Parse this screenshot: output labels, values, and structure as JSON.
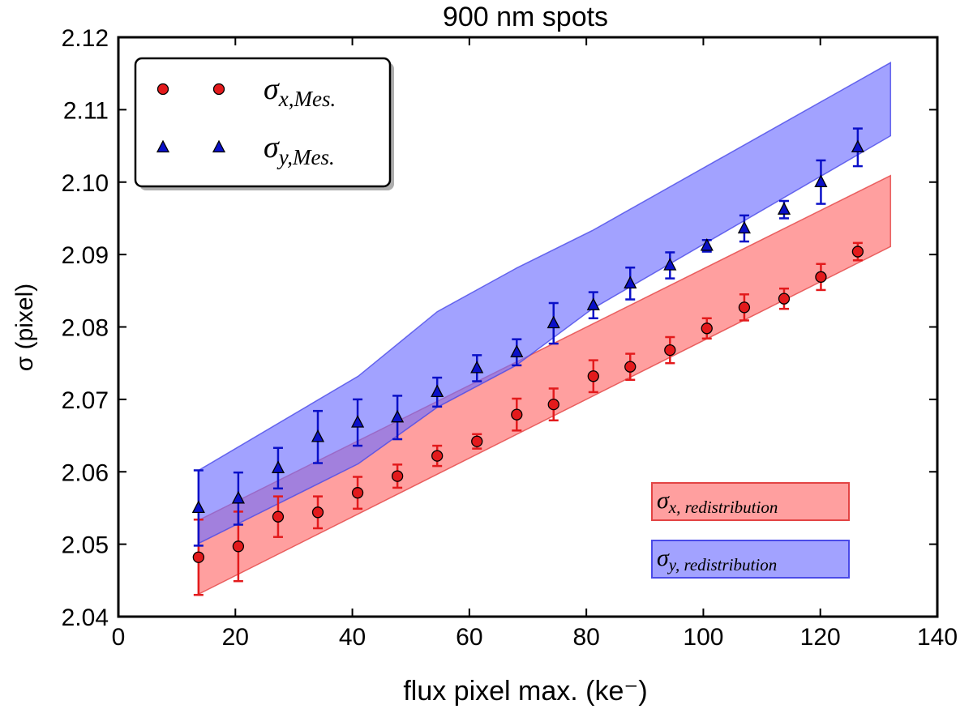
{
  "chart_data": {
    "type": "scatter",
    "title": "900 nm spots",
    "xlabel": "flux pixel max. (ke⁻)",
    "ylabel": "σ (pixel)",
    "xlim": [
      0,
      140
    ],
    "ylim": [
      2.04,
      2.12
    ],
    "x_ticks": [
      0,
      20,
      40,
      60,
      80,
      100,
      120,
      140
    ],
    "y_ticks": [
      2.04,
      2.05,
      2.06,
      2.07,
      2.08,
      2.09,
      2.1,
      2.11,
      2.12
    ],
    "x_tick_labels": [
      "0",
      "20",
      "40",
      "60",
      "80",
      "100",
      "120",
      "140"
    ],
    "y_tick_labels": [
      "2.04",
      "2.05",
      "2.06",
      "2.07",
      "2.08",
      "2.09",
      "2.10",
      "2.11",
      "2.12"
    ],
    "series": [
      {
        "name": "σx,Mes.",
        "label_main": "σ",
        "label_sub": "x,Mes.",
        "marker": "circle",
        "color": "#e31a1c",
        "errcolor": "#e31a1c",
        "x": [
          13.7,
          20.5,
          27.3,
          34.1,
          40.9,
          47.7,
          54.5,
          61.3,
          68.1,
          74.4,
          81.2,
          87.5,
          94.3,
          100.6,
          107.0,
          113.8,
          120.1,
          126.4
        ],
        "y": [
          2.0482,
          2.0497,
          2.0538,
          2.0544,
          2.0571,
          2.0594,
          2.0622,
          2.0642,
          2.0679,
          2.0693,
          2.0732,
          2.0745,
          2.0768,
          2.0798,
          2.0827,
          2.0839,
          2.0869,
          2.0904
        ],
        "err": [
          0.0052,
          0.0048,
          0.0028,
          0.0022,
          0.0022,
          0.0016,
          0.0014,
          0.001,
          0.0022,
          0.0022,
          0.0022,
          0.0018,
          0.0018,
          0.0014,
          0.0018,
          0.0014,
          0.0018,
          0.0012
        ]
      },
      {
        "name": "σy,Mes.",
        "label_main": "σ",
        "label_sub": "y,Mes.",
        "marker": "triangle",
        "color": "#0a10c8",
        "errcolor": "#0a10c8",
        "x": [
          13.7,
          20.5,
          27.3,
          34.1,
          40.9,
          47.7,
          54.5,
          61.3,
          68.1,
          74.4,
          81.2,
          87.5,
          94.3,
          100.6,
          107.0,
          113.8,
          120.1,
          126.4
        ],
        "y": [
          2.055,
          2.0563,
          2.0605,
          2.0648,
          2.0668,
          2.0675,
          2.071,
          2.0743,
          2.0765,
          2.0805,
          2.083,
          2.086,
          2.0885,
          2.0912,
          2.0936,
          2.0962,
          2.1,
          2.1048
        ],
        "err": [
          0.0052,
          0.0036,
          0.0028,
          0.0036,
          0.0032,
          0.003,
          0.002,
          0.0018,
          0.0018,
          0.0028,
          0.0018,
          0.0022,
          0.0018,
          0.0008,
          0.0018,
          0.0012,
          0.003,
          0.0026
        ]
      }
    ],
    "bands": [
      {
        "name": "σx, redistribution",
        "label_main": "σ",
        "label_sub": "x, redistribution",
        "fill": "#ff6b6b",
        "stroke": "#e34444",
        "x": [
          13.7,
          132.0
        ],
        "upper": [
          2.0533,
          2.1009
        ],
        "lower": [
          2.0431,
          2.0911
        ]
      },
      {
        "name": "σy, redistribution",
        "label_main": "σ",
        "label_sub": "y, redistribution",
        "fill": "#7070ff",
        "stroke": "#4a4ae8",
        "x": [
          13.7,
          41.0,
          54.5,
          68.0,
          81.0,
          132.0
        ],
        "upper": [
          2.0602,
          2.0732,
          2.0821,
          2.0881,
          2.0933,
          2.1165
        ],
        "lower": [
          2.0501,
          2.0611,
          2.0689,
          2.0747,
          2.0825,
          2.1064
        ]
      }
    ],
    "legend_position": "top-left",
    "band_labels_position": "lower-right"
  }
}
